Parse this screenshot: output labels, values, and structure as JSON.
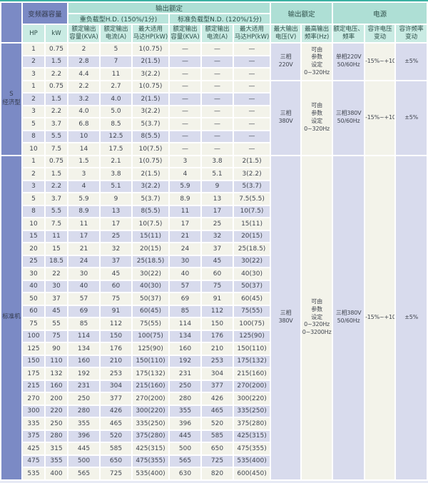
{
  "colors": {
    "header_teal": "#aedfd5",
    "header_teal_light": "#c9ebe3",
    "accent_blue": "#7b8ac5",
    "row_cream": "#f3f3ea",
    "row_lavender": "#d8dbed",
    "top_line_teal": "#3cb1a2"
  },
  "table": {
    "header": {
      "capacity_group": "变频器容量",
      "output_rating_group": "输出额定",
      "hd_subgroup": "重负载型H.D. (150%/1分)",
      "nd_subgroup": "标准负载型N.D. (120%/1分)",
      "output_rating2_group": "输出额定",
      "power_group": "电源",
      "columns": [
        "HP",
        "kW",
        "额定输出\n容量(KVA)",
        "额定输出\n电流(A)",
        "最大适用\n马达HP(kW)",
        "额定输出\n容量(KVA)",
        "额定输出\n电流(A)",
        "最大适用\n马达HP(kW)",
        "最大输出\n电压(V)",
        "最高输出\n频率(Hz)",
        "额定电压、\n频率",
        "容许电压\n变动",
        "容许频率\n变动"
      ]
    },
    "sections": [
      {
        "label": "S\n经济型",
        "blocks": [
          {
            "max_voltage": "三相\n220V",
            "max_frequency": "可由\n参数\n设定\n0~320Hz",
            "rated_voltage_freq": "单相220V\n50/60Hz",
            "voltage_variation": "-15%~+10%",
            "frequency_variation": "±5%",
            "rows": [
              [
                "1",
                "0.75",
                "2",
                "5",
                "1(0.75)",
                "—",
                "—",
                "—"
              ],
              [
                "2",
                "1.5",
                "2.8",
                "7",
                "2(1.5)",
                "—",
                "—",
                "—"
              ],
              [
                "3",
                "2.2",
                "4.4",
                "11",
                "3(2.2)",
                "—",
                "—",
                "—"
              ]
            ]
          },
          {
            "max_voltage": "三相\n380V",
            "max_frequency": "可由\n参数\n设定\n0~320Hz",
            "rated_voltage_freq": "三相380V\n50/60Hz",
            "voltage_variation": "-15%~+10%",
            "frequency_variation": "±5%",
            "rows": [
              [
                "1",
                "0.75",
                "2.2",
                "2.7",
                "1(0.75)",
                "—",
                "—",
                "—"
              ],
              [
                "2",
                "1.5",
                "3.2",
                "4.0",
                "2(1.5)",
                "—",
                "—",
                "—"
              ],
              [
                "3",
                "2.2",
                "4.0",
                "5.0",
                "3(2.2)",
                "—",
                "—",
                "—"
              ],
              [
                "5",
                "3.7",
                "6.8",
                "8.5",
                "5(3.7)",
                "—",
                "—",
                "—"
              ],
              [
                "8",
                "5.5",
                "10",
                "12.5",
                "8(5.5)",
                "—",
                "—",
                "—"
              ],
              [
                "10",
                "7.5",
                "14",
                "17.5",
                "10(7.5)",
                "—",
                "—",
                "—"
              ]
            ]
          }
        ]
      },
      {
        "label": "标准机",
        "blocks": [
          {
            "max_voltage": "三相\n380V",
            "max_frequency": "可由\n参数\n设定\n0~320Hz\n0~3200Hz",
            "rated_voltage_freq": "三相380V\n50/60Hz",
            "voltage_variation": "-15%~+10%",
            "frequency_variation": "±5%",
            "rows": [
              [
                "1",
                "0.75",
                "1.5",
                "2.1",
                "1(0.75)",
                "3",
                "3.8",
                "2(1.5)"
              ],
              [
                "2",
                "1.5",
                "3",
                "3.8",
                "2(1.5)",
                "4",
                "5.1",
                "3(2.2)"
              ],
              [
                "3",
                "2.2",
                "4",
                "5.1",
                "3(2.2)",
                "5.9",
                "9",
                "5(3.7)"
              ],
              [
                "5",
                "3.7",
                "5.9",
                "9",
                "5(3.7)",
                "8.9",
                "13",
                "7.5(5.5)"
              ],
              [
                "8",
                "5.5",
                "8.9",
                "13",
                "8(5.5)",
                "11",
                "17",
                "10(7.5)"
              ],
              [
                "10",
                "7.5",
                "11",
                "17",
                "10(7.5)",
                "17",
                "25",
                "15(11)"
              ],
              [
                "15",
                "11",
                "17",
                "25",
                "15(11)",
                "21",
                "32",
                "20(15)"
              ],
              [
                "20",
                "15",
                "21",
                "32",
                "20(15)",
                "24",
                "37",
                "25(18.5)"
              ],
              [
                "25",
                "18.5",
                "24",
                "37",
                "25(18.5)",
                "30",
                "45",
                "30(22)"
              ],
              [
                "30",
                "22",
                "30",
                "45",
                "30(22)",
                "40",
                "60",
                "40(30)"
              ],
              [
                "40",
                "30",
                "40",
                "60",
                "40(30)",
                "57",
                "75",
                "50(37)"
              ],
              [
                "50",
                "37",
                "57",
                "75",
                "50(37)",
                "69",
                "91",
                "60(45)"
              ],
              [
                "60",
                "45",
                "69",
                "91",
                "60(45)",
                "85",
                "112",
                "75(55)"
              ],
              [
                "75",
                "55",
                "85",
                "112",
                "75(55)",
                "114",
                "150",
                "100(75)"
              ],
              [
                "100",
                "75",
                "114",
                "150",
                "100(75)",
                "134",
                "176",
                "125(90)"
              ],
              [
                "125",
                "90",
                "134",
                "176",
                "125(90)",
                "160",
                "210",
                "150(110)"
              ],
              [
                "150",
                "110",
                "160",
                "210",
                "150(110)",
                "192",
                "253",
                "175(132)"
              ],
              [
                "175",
                "132",
                "192",
                "253",
                "175(132)",
                "231",
                "304",
                "215(160)"
              ],
              [
                "215",
                "160",
                "231",
                "304",
                "215(160)",
                "250",
                "377",
                "270(200)"
              ],
              [
                "270",
                "200",
                "250",
                "377",
                "270(200)",
                "280",
                "426",
                "300(220)"
              ],
              [
                "300",
                "220",
                "280",
                "426",
                "300(220)",
                "355",
                "465",
                "335(250)"
              ],
              [
                "335",
                "250",
                "355",
                "465",
                "335(250)",
                "396",
                "520",
                "375(280)"
              ],
              [
                "375",
                "280",
                "396",
                "520",
                "375(280)",
                "445",
                "585",
                "425(315)"
              ],
              [
                "425",
                "315",
                "445",
                "585",
                "425(315)",
                "500",
                "650",
                "475(355)"
              ],
              [
                "475",
                "355",
                "500",
                "650",
                "475(355)",
                "565",
                "725",
                "535(400)"
              ],
              [
                "535",
                "400",
                "565",
                "725",
                "535(400)",
                "630",
                "820",
                "600(450)"
              ]
            ]
          }
        ]
      }
    ]
  }
}
